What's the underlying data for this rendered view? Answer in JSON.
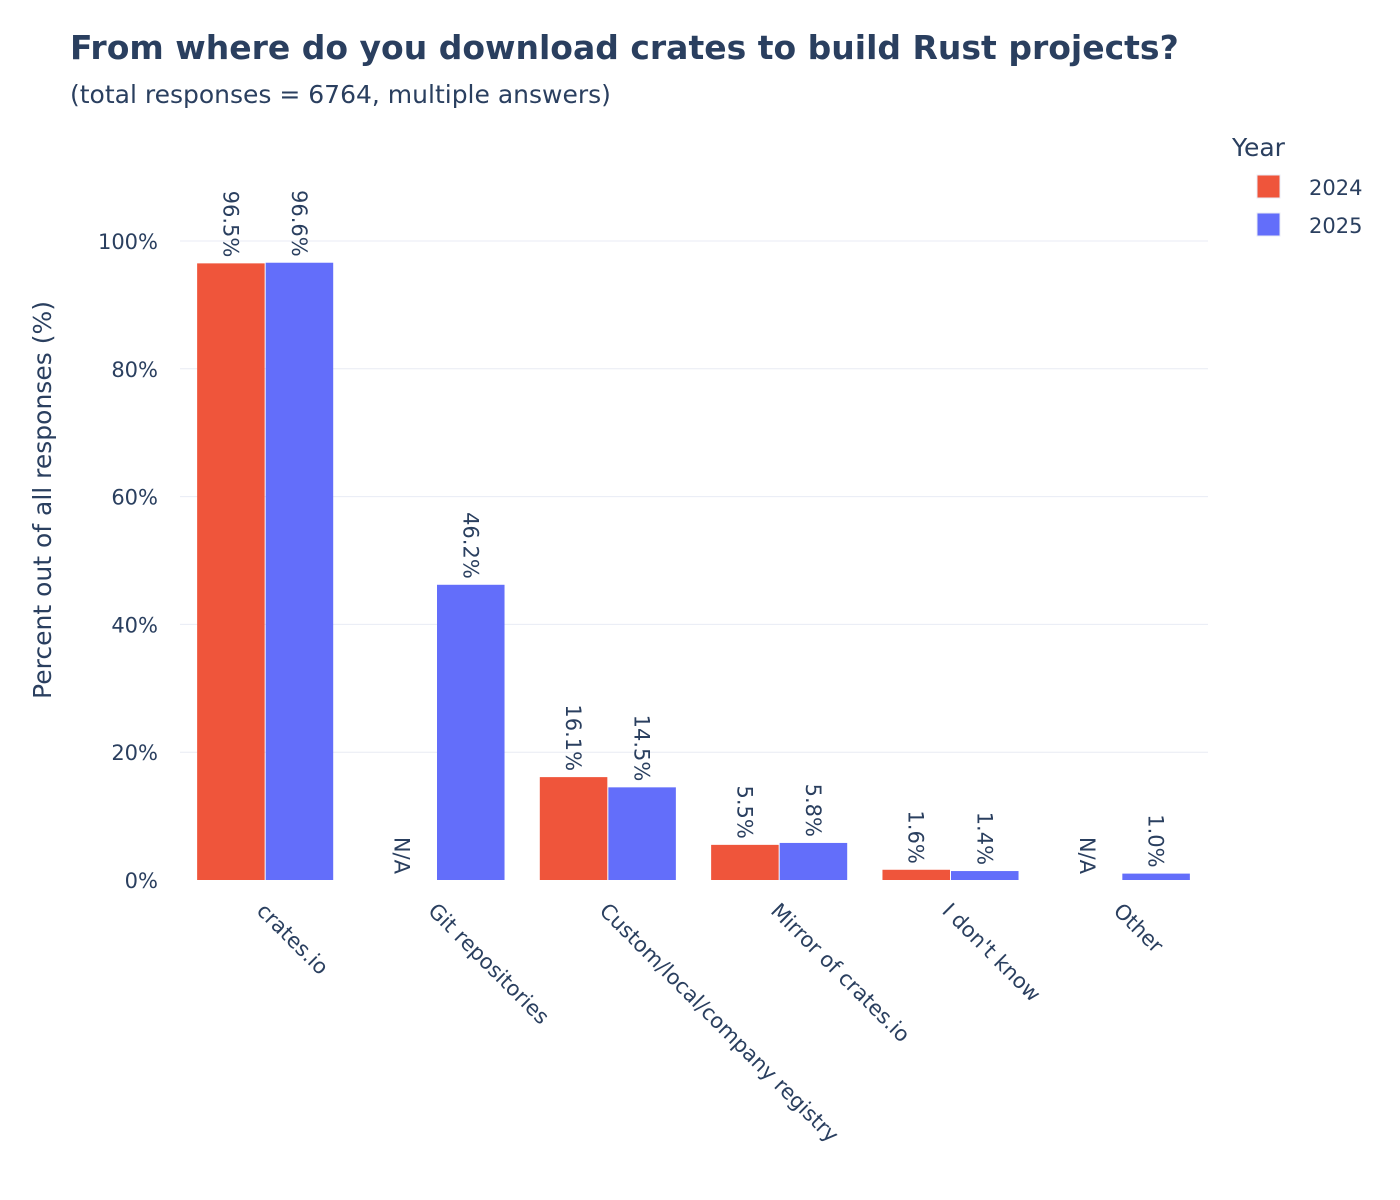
{
  "chart_data": {
    "type": "bar",
    "title": "From where do you download crates to build Rust projects?",
    "subtitle": "(total responses = 6764, multiple answers)",
    "xlabel": "",
    "ylabel": "Percent out of all responses (%)",
    "ylim": [
      0,
      100
    ],
    "yticks": [
      0,
      20,
      40,
      60,
      80,
      100
    ],
    "ytick_labels": [
      "0%",
      "20%",
      "40%",
      "60%",
      "80%",
      "100%"
    ],
    "grid": true,
    "categories": [
      "crates.io",
      "Git repositories",
      "Custom/local/company registry",
      "Mirror of crates.io",
      "I don't know",
      "Other"
    ],
    "legend": {
      "title": "Year",
      "placement": "top-right"
    },
    "series": [
      {
        "name": "2024",
        "color": "#EF553B",
        "values": [
          96.5,
          null,
          16.1,
          5.5,
          1.6,
          null
        ],
        "labels": [
          "96.5%",
          "N/A",
          "16.1%",
          "5.5%",
          "1.6%",
          "N/A"
        ]
      },
      {
        "name": "2025",
        "color": "#636EFA",
        "values": [
          96.6,
          46.2,
          14.5,
          5.8,
          1.4,
          1.0
        ],
        "labels": [
          "96.6%",
          "46.2%",
          "14.5%",
          "5.8%",
          "1.4%",
          "1.0%"
        ]
      }
    ]
  }
}
